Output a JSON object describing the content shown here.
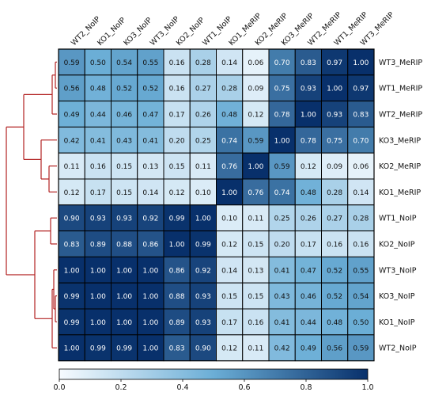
{
  "chart_data": {
    "type": "heatmap",
    "title": "",
    "columns": [
      "WT2_NoIP",
      "KO1_NoIP",
      "KO3_NoIP",
      "WT3_NoIP",
      "KO2_NoIP",
      "WT1_NoIP",
      "KO1_MeRIP",
      "KO2_MeRIP",
      "KO3_MeRIP",
      "WT2_MeRIP",
      "WT1_MeRIP",
      "WT3_MeRIP"
    ],
    "rows": [
      "WT3_MeRIP",
      "WT1_MeRIP",
      "WT2_MeRIP",
      "KO3_MeRIP",
      "KO2_MeRIP",
      "KO1_MeRIP",
      "WT1_NoIP",
      "KO2_NoIP",
      "WT3_NoIP",
      "KO3_NoIP",
      "KO1_NoIP",
      "WT2_NoIP"
    ],
    "values": [
      [
        "0.59",
        "0.50",
        "0.54",
        "0.55",
        "0.16",
        "0.28",
        "0.14",
        "0.06",
        "0.70",
        "0.83",
        "0.97",
        "1.00"
      ],
      [
        "0.56",
        "0.48",
        "0.52",
        "0.52",
        "0.16",
        "0.27",
        "0.28",
        "0.09",
        "0.75",
        "0.93",
        "1.00",
        "0.97"
      ],
      [
        "0.49",
        "0.44",
        "0.46",
        "0.47",
        "0.17",
        "0.26",
        "0.48",
        "0.12",
        "0.78",
        "1.00",
        "0.93",
        "0.83"
      ],
      [
        "0.42",
        "0.41",
        "0.43",
        "0.41",
        "0.20",
        "0.25",
        "0.74",
        "0.59",
        "1.00",
        "0.78",
        "0.75",
        "0.70"
      ],
      [
        "0.11",
        "0.16",
        "0.15",
        "0.13",
        "0.15",
        "0.11",
        "0.76",
        "1.00",
        "0.59",
        "0.12",
        "0.09",
        "0.06"
      ],
      [
        "0.12",
        "0.17",
        "0.15",
        "0.14",
        "0.12",
        "0.10",
        "1.00",
        "0.76",
        "0.74",
        "0.48",
        "0.28",
        "0.14"
      ],
      [
        "0.90",
        "0.93",
        "0.93",
        "0.92",
        "0.99",
        "1.00",
        "0.10",
        "0.11",
        "0.25",
        "0.26",
        "0.27",
        "0.28"
      ],
      [
        "0.83",
        "0.89",
        "0.88",
        "0.86",
        "1.00",
        "0.99",
        "0.12",
        "0.15",
        "0.20",
        "0.17",
        "0.16",
        "0.16"
      ],
      [
        "1.00",
        "1.00",
        "1.00",
        "1.00",
        "0.86",
        "0.92",
        "0.14",
        "0.13",
        "0.41",
        "0.47",
        "0.52",
        "0.55"
      ],
      [
        "0.99",
        "1.00",
        "1.00",
        "1.00",
        "0.88",
        "0.93",
        "0.15",
        "0.15",
        "0.43",
        "0.46",
        "0.52",
        "0.54"
      ],
      [
        "0.99",
        "1.00",
        "1.00",
        "1.00",
        "0.89",
        "0.93",
        "0.17",
        "0.16",
        "0.41",
        "0.44",
        "0.48",
        "0.50"
      ],
      [
        "1.00",
        "0.99",
        "0.99",
        "1.00",
        "0.83",
        "0.90",
        "0.12",
        "0.11",
        "0.42",
        "0.49",
        "0.56",
        "0.59"
      ]
    ],
    "colorbar": {
      "range": [
        0.0,
        1.0
      ],
      "ticks": [
        "0.0",
        "0.2",
        "0.4",
        "0.6",
        "0.8",
        "1.0"
      ],
      "colors": [
        "#f7fbff",
        "#08306b"
      ],
      "placement": "bottom"
    },
    "dendrogram": {
      "placement": "left",
      "color": "#b22222"
    },
    "cell_border_color": "#000000"
  }
}
